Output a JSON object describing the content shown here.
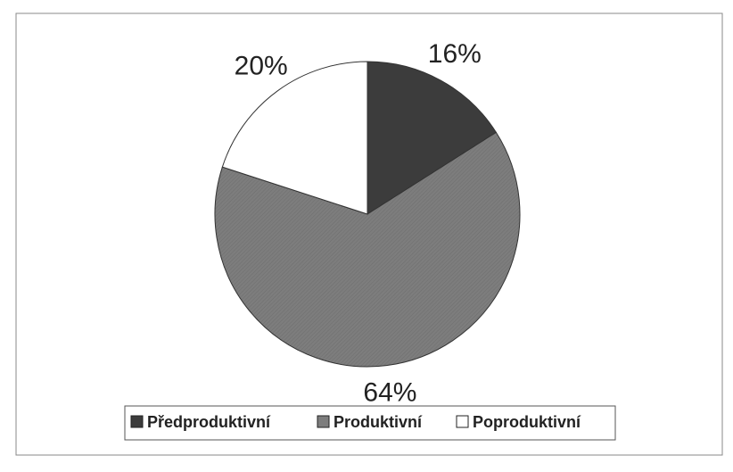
{
  "chart_data": {
    "type": "pie",
    "categories": [
      "Předproduktivní",
      "Produktivní",
      "Poproduktivní"
    ],
    "values": [
      16,
      64,
      20
    ],
    "value_labels": [
      "16%",
      "64%",
      "20%"
    ],
    "colors": [
      "#3c3c3c",
      "#7d7d7d",
      "#ffffff"
    ],
    "legend": "bottom"
  }
}
